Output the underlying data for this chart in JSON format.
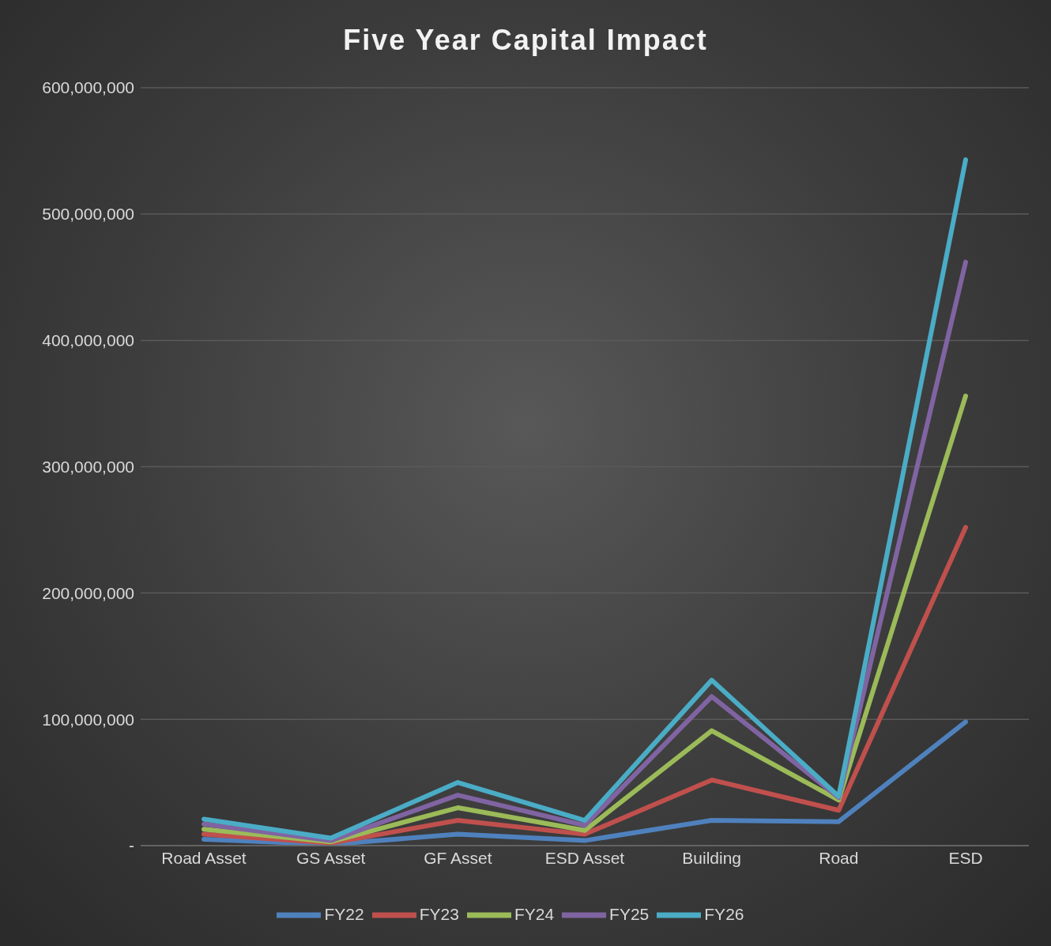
{
  "chart_data": {
    "type": "line",
    "title": "Five Year Capital Impact",
    "categories": [
      "Road Asset",
      "GS Asset",
      "GF Asset",
      "ESD Asset",
      "Building",
      "Road",
      "ESD"
    ],
    "series": [
      {
        "name": "FY22",
        "color": "#4f81bd",
        "values": [
          5000000,
          1000000,
          9000000,
          4000000,
          20000000,
          19000000,
          98000000
        ]
      },
      {
        "name": "FY23",
        "color": "#c0504d",
        "values": [
          9000000,
          2000000,
          20000000,
          9000000,
          52000000,
          28000000,
          252000000
        ]
      },
      {
        "name": "FY24",
        "color": "#9bbb59",
        "values": [
          13000000,
          3000000,
          30000000,
          12000000,
          91000000,
          36000000,
          356000000
        ]
      },
      {
        "name": "FY25",
        "color": "#8064a2",
        "values": [
          17000000,
          4000000,
          40000000,
          16000000,
          118000000,
          38000000,
          462000000
        ]
      },
      {
        "name": "FY26",
        "color": "#4bacc6",
        "values": [
          21000000,
          6000000,
          50000000,
          20000000,
          131000000,
          39000000,
          543000000
        ]
      }
    ],
    "ylim": [
      0,
      600000000
    ],
    "yticks": [
      {
        "value": 0,
        "label": "-"
      },
      {
        "value": 100000000,
        "label": "100,000,000"
      },
      {
        "value": 200000000,
        "label": "200,000,000"
      },
      {
        "value": 300000000,
        "label": "300,000,000"
      },
      {
        "value": 400000000,
        "label": "400,000,000"
      },
      {
        "value": 500000000,
        "label": "500,000,000"
      },
      {
        "value": 600000000,
        "label": "600,000,000"
      }
    ],
    "grid": "y",
    "legend": "bottom",
    "marker": "none",
    "line_style": "solid"
  }
}
